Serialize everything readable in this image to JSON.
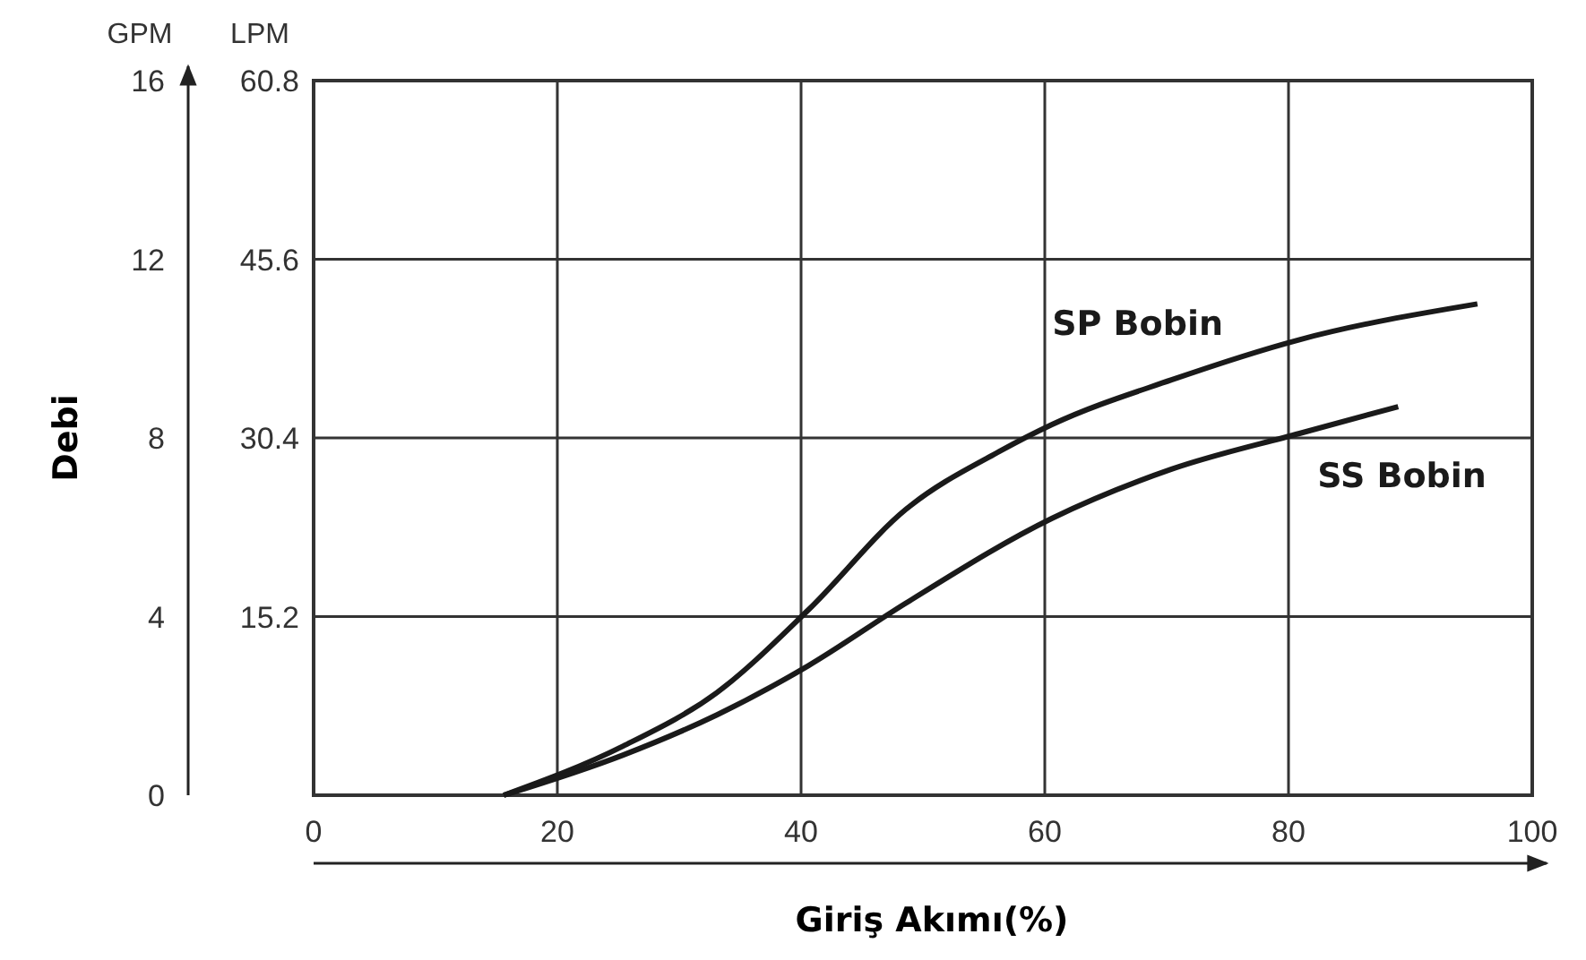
{
  "chart_data": {
    "type": "line",
    "xlabel": "Giriş Akımı(%)",
    "ylabel": "Debi",
    "y2label": "LPM",
    "annotations": [
      "GPM"
    ],
    "xlim": [
      0,
      100
    ],
    "xticks": [
      0,
      20,
      40,
      60,
      80,
      100
    ],
    "ylim": [
      0,
      16
    ],
    "yticks": [
      0,
      4,
      8,
      12,
      16
    ],
    "y2lim": [
      0,
      60.8
    ],
    "y2ticks": [
      15.2,
      30.4,
      45.6,
      60.8
    ],
    "grid": true,
    "marker": "none",
    "line_style": "solid",
    "series": [
      {
        "name": "SP Bobin",
        "color": "#1a1a1a",
        "x": [
          15.6,
          25.4,
          33.1,
          40.6,
          48.6,
          56.3,
          60.6,
          70.4,
          80.9,
          95.5
        ],
        "values": [
          0,
          1.1,
          2.3,
          4.15,
          6.4,
          7.7,
          8.3,
          9.3,
          10.2,
          11.0
        ]
      },
      {
        "name": "SS Bobin",
        "color": "#1a1a1a",
        "x": [
          15.6,
          25.4,
          33.1,
          40.6,
          48.6,
          60.6,
          70.4,
          80.9,
          89
        ],
        "values": [
          0,
          0.9,
          1.8,
          2.9,
          4.3,
          6.2,
          7.3,
          8.1,
          8.7
        ]
      }
    ]
  }
}
